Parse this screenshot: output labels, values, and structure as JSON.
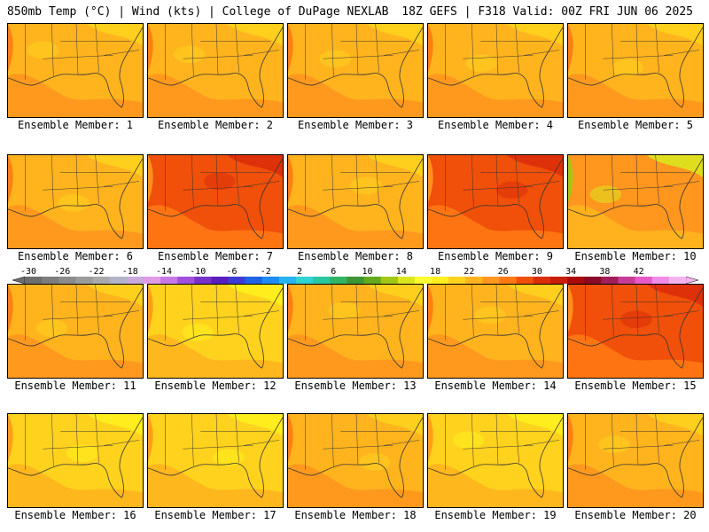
{
  "header": {
    "left": "850mb Temp (°C) | Wind (kts) | College of DuPage NEXLAB",
    "right": "18Z GEFS | F318 Valid: 00Z FRI JUN 06 2025"
  },
  "panels": [
    {
      "label": "Ensemble Member: 1",
      "palette": "warm"
    },
    {
      "label": "Ensemble Member: 2",
      "palette": "warm"
    },
    {
      "label": "Ensemble Member: 3",
      "palette": "warm"
    },
    {
      "label": "Ensemble Member: 4",
      "palette": "warm"
    },
    {
      "label": "Ensemble Member: 5",
      "palette": "warm"
    },
    {
      "label": "Ensemble Member: 6",
      "palette": "warm"
    },
    {
      "label": "Ensemble Member: 7",
      "palette": "hot"
    },
    {
      "label": "Ensemble Member: 8",
      "palette": "warm"
    },
    {
      "label": "Ensemble Member: 9",
      "palette": "hot"
    },
    {
      "label": "Ensemble Member: 10",
      "palette": "cool"
    },
    {
      "label": "Ensemble Member: 11",
      "palette": "warm"
    },
    {
      "label": "Ensemble Member: 12",
      "palette": "yellow"
    },
    {
      "label": "Ensemble Member: 13",
      "palette": "warm"
    },
    {
      "label": "Ensemble Member: 14",
      "palette": "warm"
    },
    {
      "label": "Ensemble Member: 15",
      "palette": "hot"
    },
    {
      "label": "Ensemble Member: 16",
      "palette": "yellow"
    },
    {
      "label": "Ensemble Member: 17",
      "palette": "yellow"
    },
    {
      "label": "Ensemble Member: 18",
      "palette": "warm"
    },
    {
      "label": "Ensemble Member: 19",
      "palette": "yellow"
    },
    {
      "label": "Ensemble Member: 20",
      "palette": "warm"
    }
  ],
  "colorbar": {
    "tick_labels": [
      "-30",
      "-26",
      "-22",
      "-18",
      "-14",
      "-10",
      "-6",
      "-2",
      "2",
      "6",
      "10",
      "14",
      "18",
      "22",
      "26",
      "30",
      "34",
      "38",
      "42"
    ],
    "colors": [
      "#6e6e6e",
      "#7d7d7d",
      "#8c8c8c",
      "#9b9b9b",
      "#aaaaaa",
      "#b4b4c8",
      "#c8aadc",
      "#e09be6",
      "#c878e6",
      "#a050dc",
      "#7832c8",
      "#5a1ebe",
      "#3c3cd2",
      "#1e64e6",
      "#1e8cf0",
      "#28b4f0",
      "#32d2d2",
      "#28c8a0",
      "#32b464",
      "#3c9632",
      "#64aa1e",
      "#a0c814",
      "#dce61e",
      "#ffff32",
      "#fff01e",
      "#ffd21e",
      "#ffb41e",
      "#ff961e",
      "#ff7814",
      "#f0500a",
      "#dc2d0a",
      "#c81e0a",
      "#aa0a0a",
      "#8c0a28",
      "#a01e5a",
      "#c83c96",
      "#e65ac8",
      "#f08ce6",
      "#f5b4f0"
    ]
  }
}
